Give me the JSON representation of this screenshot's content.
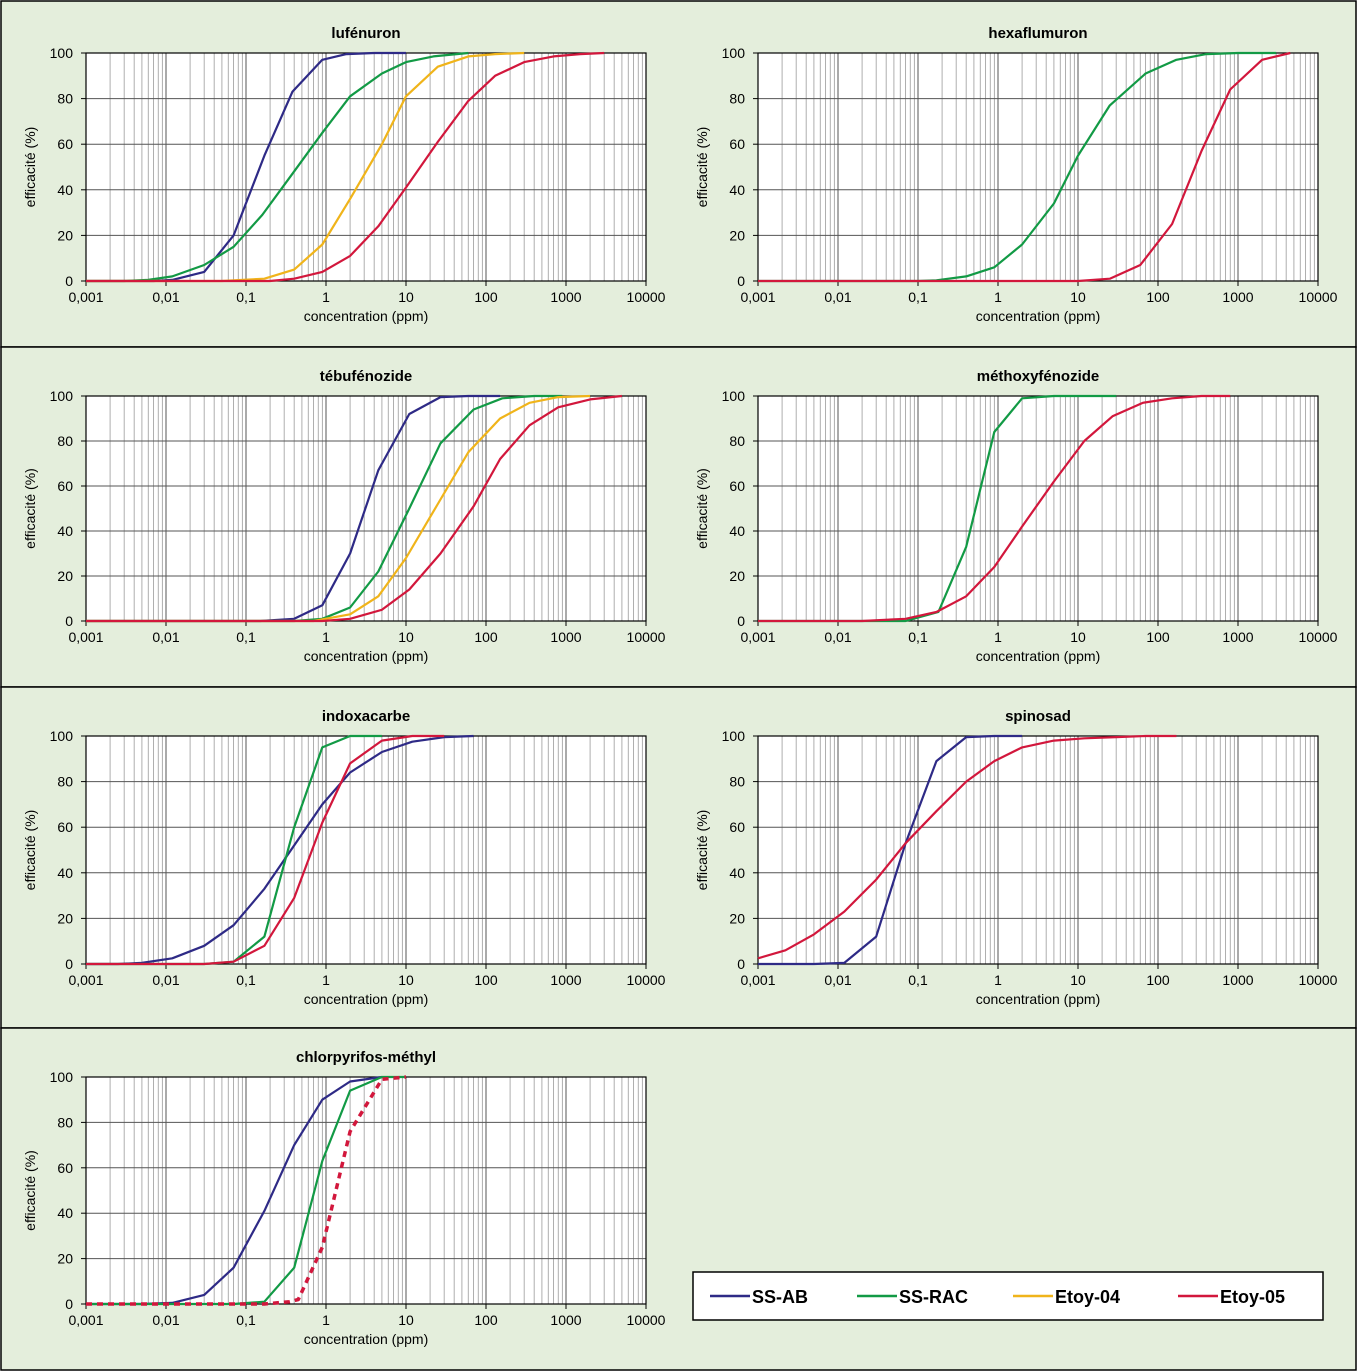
{
  "colors": {
    "panel_bg": "#e4eedc",
    "border": "#000000",
    "SS-AB": "#2e2a86",
    "SS-RAC": "#129a45",
    "Etoy-04": "#f0b41a",
    "Etoy-05": "#d2173c"
  },
  "legend": {
    "entries": [
      {
        "name": "SS-AB",
        "color": "#2e2a86"
      },
      {
        "name": "SS-RAC",
        "color": "#129a45"
      },
      {
        "name": "Etoy-04",
        "color": "#f0b41a"
      },
      {
        "name": "Etoy-05",
        "color": "#d2173c"
      }
    ]
  },
  "chart_data": [
    {
      "type": "line",
      "title": "lufénuron",
      "xlabel": "concentration (ppm)",
      "ylabel": "efficacité (%)",
      "xscale": "log",
      "xlim": [
        0.001,
        10000
      ],
      "ylim": [
        0,
        100
      ],
      "xticks": [
        "0,001",
        "0,01",
        "0,1",
        "1",
        "10",
        "100",
        "1000",
        "10000"
      ],
      "yticks": [
        "0",
        "20",
        "40",
        "60",
        "80",
        "100"
      ],
      "grid": "log-minor vertical, y every 20",
      "series": [
        {
          "name": "SS-AB",
          "x": [
            0.001,
            0.003,
            0.007,
            0.012,
            0.03,
            0.07,
            0.17,
            0.38,
            0.9,
            1.8,
            4,
            10
          ],
          "y": [
            0,
            0,
            0,
            0.5,
            4,
            20,
            55,
            83,
            97,
            99.5,
            100,
            100
          ]
        },
        {
          "name": "SS-RAC",
          "x": [
            0.001,
            0.003,
            0.006,
            0.012,
            0.03,
            0.07,
            0.16,
            0.38,
            0.9,
            2,
            5,
            10,
            22,
            60
          ],
          "y": [
            0,
            0,
            0.5,
            2,
            7,
            15,
            29,
            47,
            65,
            81,
            91,
            96,
            98.5,
            100
          ]
        },
        {
          "name": "Etoy-04",
          "x": [
            0.001,
            0.05,
            0.17,
            0.4,
            0.9,
            2,
            5,
            10,
            25,
            60,
            130,
            300
          ],
          "y": [
            0,
            0,
            1,
            5,
            16,
            36,
            60,
            81,
            94,
            98.5,
            99.5,
            100
          ]
        },
        {
          "name": "Etoy-05",
          "x": [
            0.001,
            0.2,
            0.4,
            0.9,
            2,
            4.5,
            10,
            25,
            60,
            130,
            300,
            700,
            1500,
            3000
          ],
          "y": [
            0,
            0,
            1,
            4,
            11,
            24,
            41,
            61,
            79,
            90,
            96,
            98.5,
            99.5,
            100
          ]
        }
      ]
    },
    {
      "type": "line",
      "title": "hexaflumuron",
      "xlabel": "concentration (ppm)",
      "ylabel": "efficacité (%)",
      "xscale": "log",
      "xlim": [
        0.001,
        10000
      ],
      "ylim": [
        0,
        100
      ],
      "xticks": [
        "0,001",
        "0,01",
        "0,1",
        "1",
        "10",
        "100",
        "1000",
        "10000"
      ],
      "yticks": [
        "0",
        "20",
        "40",
        "60",
        "80",
        "100"
      ],
      "grid": "log-minor vertical, y every 20",
      "series": [
        {
          "name": "SS-RAC",
          "x": [
            0.001,
            0.1,
            0.17,
            0.4,
            0.9,
            2,
            5,
            10,
            25,
            70,
            170,
            400,
            1000,
            3000
          ],
          "y": [
            0,
            0,
            0.3,
            2,
            6,
            16,
            34,
            55,
            77,
            91,
            97,
            99.5,
            100,
            100
          ]
        },
        {
          "name": "Etoy-05",
          "x": [
            0.001,
            10,
            25,
            60,
            150,
            350,
            800,
            2000,
            4500
          ],
          "y": [
            0,
            0,
            1,
            7,
            25,
            57,
            84,
            97,
            100
          ]
        }
      ]
    },
    {
      "type": "line",
      "title": "tébufénozide",
      "xlabel": "concentration (ppm)",
      "ylabel": "efficacité (%)",
      "xscale": "log",
      "xlim": [
        0.001,
        10000
      ],
      "ylim": [
        0,
        100
      ],
      "xticks": [
        "0,001",
        "0,01",
        "0,1",
        "1",
        "10",
        "100",
        "1000",
        "10000"
      ],
      "yticks": [
        "0",
        "20",
        "40",
        "60",
        "80",
        "100"
      ],
      "grid": "log-minor vertical, y every 20",
      "series": [
        {
          "name": "SS-AB",
          "x": [
            0.001,
            0.15,
            0.4,
            0.9,
            2,
            4.5,
            11,
            27,
            60,
            150
          ],
          "y": [
            0,
            0,
            1,
            7,
            30,
            67,
            92,
            99.5,
            100,
            100
          ]
        },
        {
          "name": "SS-RAC",
          "x": [
            0.001,
            0.4,
            0.9,
            2,
            4.5,
            11,
            27,
            70,
            160,
            400,
            900
          ],
          "y": [
            0,
            0,
            1,
            6,
            22,
            50,
            79,
            94,
            99,
            100,
            100
          ]
        },
        {
          "name": "Etoy-04",
          "x": [
            0.001,
            0.7,
            2,
            4.5,
            10,
            25,
            60,
            150,
            350,
            800,
            2000
          ],
          "y": [
            0,
            0,
            3,
            11,
            28,
            52,
            75,
            90,
            97,
            99.5,
            100
          ]
        },
        {
          "name": "Etoy-05",
          "x": [
            0.001,
            0.9,
            2,
            5,
            11,
            27,
            70,
            150,
            350,
            800,
            2000,
            5000
          ],
          "y": [
            0,
            0,
            1,
            5,
            14,
            30,
            51,
            72,
            87,
            95,
            98.5,
            100
          ]
        }
      ]
    },
    {
      "type": "line",
      "title": "méthoxyfénozide",
      "xlabel": "concentration (ppm)",
      "ylabel": "efficacité (%)",
      "xscale": "log",
      "xlim": [
        0.001,
        10000
      ],
      "ylim": [
        0,
        100
      ],
      "xticks": [
        "0,001",
        "0,01",
        "0,1",
        "1",
        "10",
        "100",
        "1000",
        "10000"
      ],
      "yticks": [
        "0",
        "20",
        "40",
        "60",
        "80",
        "100"
      ],
      "grid": "log-minor vertical, y every 20",
      "series": [
        {
          "name": "SS-RAC",
          "x": [
            0.001,
            0.07,
            0.18,
            0.4,
            0.9,
            2,
            5,
            12,
            30
          ],
          "y": [
            0,
            0,
            4,
            33,
            84,
            99,
            100,
            100,
            100
          ]
        },
        {
          "name": "Etoy-05",
          "x": [
            0.001,
            0.02,
            0.07,
            0.17,
            0.4,
            0.9,
            2,
            5,
            12,
            27,
            65,
            150,
            350,
            800
          ],
          "y": [
            0,
            0,
            1,
            4,
            11,
            24,
            42,
            62,
            80,
            91,
            97,
            99,
            100,
            100
          ]
        }
      ]
    },
    {
      "type": "line",
      "title": "indoxacarbe",
      "xlabel": "concentration (ppm)",
      "ylabel": "efficacité (%)",
      "xscale": "log",
      "xlim": [
        0.001,
        10000
      ],
      "ylim": [
        0,
        100
      ],
      "xticks": [
        "0,001",
        "0,01",
        "0,1",
        "1",
        "10",
        "100",
        "1000",
        "10000"
      ],
      "yticks": [
        "0",
        "20",
        "40",
        "60",
        "80",
        "100"
      ],
      "grid": "log-minor vertical, y every 20",
      "series": [
        {
          "name": "SS-AB",
          "x": [
            0.001,
            0.0025,
            0.005,
            0.012,
            0.03,
            0.07,
            0.17,
            0.4,
            0.9,
            2,
            5,
            12,
            30,
            70
          ],
          "y": [
            0,
            0,
            0.5,
            2.5,
            8,
            17,
            33,
            52,
            70,
            84,
            93,
            97.5,
            99.5,
            100
          ]
        },
        {
          "name": "SS-RAC",
          "x": [
            0.001,
            0.03,
            0.07,
            0.17,
            0.4,
            0.9,
            2,
            5
          ],
          "y": [
            0,
            0,
            1,
            12,
            60,
            95,
            100,
            100
          ]
        },
        {
          "name": "Etoy-05",
          "x": [
            0.001,
            0.03,
            0.07,
            0.17,
            0.4,
            0.9,
            2,
            5,
            12,
            30
          ],
          "y": [
            0,
            0,
            1,
            8,
            29,
            62,
            88,
            98,
            100,
            100
          ]
        }
      ]
    },
    {
      "type": "line",
      "title": "spinosad",
      "xlabel": "concentration (ppm)",
      "ylabel": "efficacité (%)",
      "xscale": "log",
      "xlim": [
        0.001,
        10000
      ],
      "ylim": [
        0,
        100
      ],
      "xticks": [
        "0,001",
        "0,01",
        "0,1",
        "1",
        "10",
        "100",
        "1000",
        "10000"
      ],
      "yticks": [
        "0",
        "20",
        "40",
        "60",
        "80",
        "100"
      ],
      "grid": "log-minor vertical, y every 20",
      "series": [
        {
          "name": "SS-AB",
          "x": [
            0.001,
            0.005,
            0.012,
            0.03,
            0.07,
            0.17,
            0.4,
            0.9,
            2
          ],
          "y": [
            0,
            0,
            0.5,
            12,
            53,
            89,
            99.5,
            100,
            100
          ]
        },
        {
          "name": "Etoy-05",
          "x": [
            0.001,
            0.0022,
            0.005,
            0.012,
            0.03,
            0.07,
            0.17,
            0.4,
            0.9,
            2,
            5,
            12,
            30,
            70,
            170
          ],
          "y": [
            2.5,
            6,
            13,
            23,
            37,
            53,
            67,
            80,
            89,
            95,
            98,
            99,
            99.5,
            100,
            100
          ]
        }
      ]
    },
    {
      "type": "line",
      "title": "chlorpyrifos-méthyl",
      "xlabel": "concentration (ppm)",
      "ylabel": "efficacité (%)",
      "xscale": "log",
      "xlim": [
        0.001,
        10000
      ],
      "ylim": [
        0,
        100
      ],
      "xticks": [
        "0,001",
        "0,01",
        "0,1",
        "1",
        "10",
        "100",
        "1000",
        "10000"
      ],
      "yticks": [
        "0",
        "20",
        "40",
        "60",
        "80",
        "100"
      ],
      "grid": "log-minor vertical, y every 20",
      "series": [
        {
          "name": "SS-AB",
          "x": [
            0.001,
            0.005,
            0.012,
            0.03,
            0.07,
            0.17,
            0.4,
            0.9,
            2,
            5
          ],
          "y": [
            0,
            0,
            0.5,
            4,
            16,
            41,
            70,
            90,
            98,
            100
          ]
        },
        {
          "name": "SS-RAC",
          "x": [
            0.001,
            0.07,
            0.17,
            0.4,
            0.9,
            2,
            5,
            10
          ],
          "y": [
            0,
            0,
            1,
            16,
            63,
            94,
            100,
            100
          ]
        },
        {
          "name": "Etoy-05",
          "dashed": true,
          "x": [
            0.001,
            0.17,
            0.35,
            0.45,
            0.9,
            2,
            5,
            10
          ],
          "y": [
            0,
            0,
            1,
            2,
            25,
            76,
            99,
            100
          ]
        }
      ]
    }
  ]
}
